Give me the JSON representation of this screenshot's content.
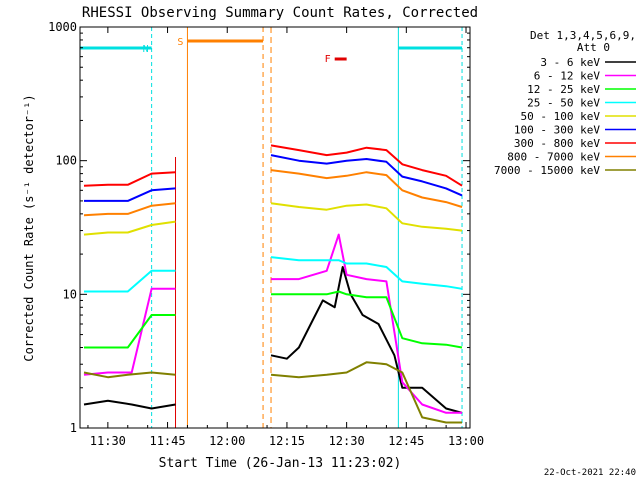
{
  "chart_data": {
    "type": "line",
    "title": "RHESSI Observing Summary Count Rates, Corrected",
    "xlabel": "Start Time (26-Jan-13 11:23:02)",
    "ylabel": "Corrected Count Rate (s⁻¹ detector⁻¹)",
    "y_scale": "log",
    "ylim": [
      1,
      1000
    ],
    "xlim": [
      "11:23",
      "13:01"
    ],
    "x_ticks": [
      "11:30",
      "11:45",
      "12:00",
      "12:15",
      "12:30",
      "12:45",
      "13:00"
    ],
    "y_ticks": [
      "1",
      "10",
      "100",
      "1000"
    ],
    "legend_header": [
      "Det 1,3,4,5,6,9,",
      "Att 0"
    ],
    "legend_position": "right",
    "footer": "22-Oct-2021 22:40",
    "flag_labels": [
      "N",
      "S",
      "F"
    ],
    "flag_intervals": [
      {
        "name": "N",
        "color": "#00e0e0",
        "start": "11:23",
        "end": "11:41"
      },
      {
        "name": "N",
        "color": "#00e0e0",
        "start": "12:43",
        "end": "12:59"
      },
      {
        "name": "S",
        "color": "#ff8000",
        "start": "11:50",
        "end": "12:09"
      },
      {
        "name": "F",
        "color": "#e00000",
        "start": "12:27",
        "end": "12:30"
      }
    ],
    "gaps": [
      [
        "11:47",
        "12:11"
      ]
    ],
    "series": [
      {
        "name": "3 - 6 keV",
        "color": "#000000",
        "x": [
          "11:24",
          "11:30",
          "11:36",
          "11:41",
          "11:47",
          "12:11",
          "12:15",
          "12:18",
          "12:21",
          "12:24",
          "12:27",
          "12:29",
          "12:31",
          "12:34",
          "12:38",
          "12:42",
          "12:44",
          "12:49",
          "12:55",
          "12:59"
        ],
        "y": [
          1.5,
          1.6,
          1.5,
          1.4,
          1.5,
          3.5,
          3.3,
          4,
          6,
          9,
          8,
          16,
          10,
          7,
          6,
          3.5,
          2,
          2,
          1.4,
          1.3
        ]
      },
      {
        "name": "6 - 12 keV",
        "color": "#ff00ff",
        "x": [
          "11:24",
          "11:30",
          "11:36",
          "11:41",
          "11:47",
          "12:11",
          "12:18",
          "12:25",
          "12:28",
          "12:30",
          "12:35",
          "12:40",
          "12:44",
          "12:49",
          "12:55",
          "12:59"
        ],
        "y": [
          2.5,
          2.6,
          2.6,
          11,
          11,
          13,
          13,
          15,
          28,
          14,
          13,
          12.5,
          2.2,
          1.5,
          1.3,
          1.3
        ]
      },
      {
        "name": "12 - 25 keV",
        "color": "#00ff00",
        "x": [
          "11:24",
          "11:30",
          "11:35",
          "11:41",
          "11:47",
          "12:11",
          "12:18",
          "12:25",
          "12:28",
          "12:30",
          "12:35",
          "12:40",
          "12:44",
          "12:49",
          "12:55",
          "12:59"
        ],
        "y": [
          4,
          4,
          4,
          7,
          7,
          10,
          10,
          10,
          10.5,
          10,
          9.5,
          9.5,
          4.7,
          4.3,
          4.2,
          4
        ]
      },
      {
        "name": "25 - 50 keV",
        "color": "#00ffff",
        "x": [
          "11:24",
          "11:30",
          "11:35",
          "11:41",
          "11:47",
          "12:11",
          "12:18",
          "12:25",
          "12:28",
          "12:30",
          "12:35",
          "12:40",
          "12:44",
          "12:49",
          "12:55",
          "12:59"
        ],
        "y": [
          10.5,
          10.5,
          10.5,
          15,
          15,
          19,
          18,
          18,
          18,
          17,
          17,
          16,
          12.5,
          12,
          11.5,
          11
        ]
      },
      {
        "name": "50 - 100 keV",
        "color": "#e0e000",
        "x": [
          "11:24",
          "11:30",
          "11:35",
          "11:41",
          "11:47",
          "12:11",
          "12:18",
          "12:25",
          "12:30",
          "12:35",
          "12:40",
          "12:44",
          "12:49",
          "12:55",
          "12:59"
        ],
        "y": [
          28,
          29,
          29,
          33,
          35,
          48,
          45,
          43,
          46,
          47,
          44,
          34,
          32,
          31,
          30
        ]
      },
      {
        "name": "100 - 300 keV",
        "color": "#0000ff",
        "x": [
          "11:24",
          "11:30",
          "11:35",
          "11:41",
          "11:47",
          "12:11",
          "12:18",
          "12:25",
          "12:30",
          "12:35",
          "12:40",
          "12:44",
          "12:49",
          "12:55",
          "12:59"
        ],
        "y": [
          50,
          50,
          50,
          60,
          62,
          110,
          100,
          95,
          100,
          103,
          98,
          76,
          70,
          62,
          55
        ]
      },
      {
        "name": "300 - 800 keV",
        "color": "#ff0000",
        "x": [
          "11:24",
          "11:30",
          "11:35",
          "11:41",
          "11:47",
          "12:11",
          "12:18",
          "12:25",
          "12:30",
          "12:35",
          "12:40",
          "12:44",
          "12:49",
          "12:55",
          "12:59"
        ],
        "y": [
          65,
          66,
          66,
          80,
          82,
          130,
          120,
          110,
          115,
          125,
          120,
          94,
          85,
          77,
          65
        ]
      },
      {
        "name": "800 - 7000 keV",
        "color": "#ff8000",
        "x": [
          "11:24",
          "11:30",
          "11:35",
          "11:41",
          "11:47",
          "12:11",
          "12:18",
          "12:25",
          "12:30",
          "12:35",
          "12:40",
          "12:44",
          "12:49",
          "12:55",
          "12:59"
        ],
        "y": [
          39,
          40,
          40,
          46,
          48,
          85,
          80,
          74,
          77,
          82,
          78,
          60,
          53,
          49,
          45
        ]
      },
      {
        "name": "7000 - 15000 keV",
        "color": "#808000",
        "x": [
          "11:24",
          "11:30",
          "11:35",
          "11:41",
          "11:47",
          "12:11",
          "12:18",
          "12:25",
          "12:30",
          "12:35",
          "12:40",
          "12:44",
          "12:49",
          "12:55",
          "12:59"
        ],
        "y": [
          2.6,
          2.4,
          2.5,
          2.6,
          2.5,
          2.5,
          2.4,
          2.5,
          2.6,
          3.1,
          3,
          2.6,
          1.2,
          1.1,
          1.1
        ]
      }
    ]
  }
}
